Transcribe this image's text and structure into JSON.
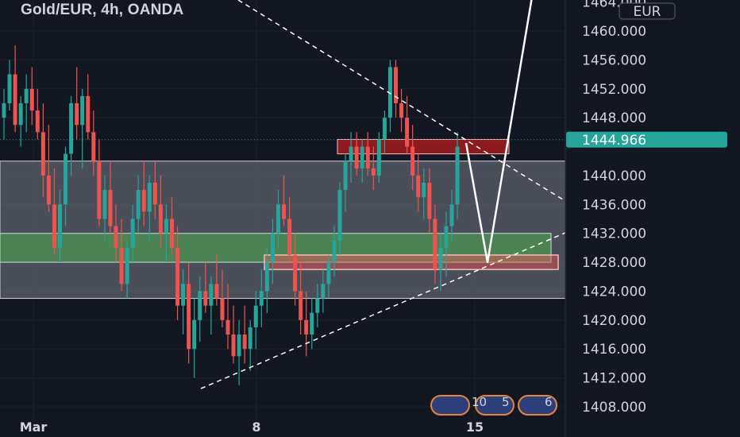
{
  "header": {
    "title": "Gold/EUR, 4h, OANDA"
  },
  "price_axis": {
    "currency": "EUR",
    "top_cut_label": "1464.000",
    "ticks": [
      "1460.000",
      "1456.000",
      "1452.000",
      "1448.000",
      "1440.000",
      "1436.000",
      "1432.000",
      "1428.000",
      "1424.000",
      "1420.000",
      "1416.000",
      "1412.000",
      "1408.000"
    ],
    "current_price": "1444.966"
  },
  "time_axis": {
    "ticks": [
      "Mar",
      "8",
      "15"
    ]
  },
  "events": {
    "counts": [
      "10",
      "5",
      "6"
    ]
  },
  "colors": {
    "background": "#131722",
    "bull": "#26a69a",
    "bear": "#ef5350",
    "price_tag": "#26a69a",
    "range_zone": "#787b86",
    "green_zone": "#4caf50",
    "red_zone": "#b71c1c"
  },
  "chart_data": {
    "type": "candlestick",
    "title": "Gold/EUR, 4h, OANDA",
    "ylim": [
      1405,
      1465
    ],
    "candles": [
      [
        1448,
        1452,
        1445,
        1450
      ],
      [
        1450,
        1456,
        1449,
        1454
      ],
      [
        1454,
        1458,
        1446,
        1447
      ],
      [
        1447,
        1451,
        1444,
        1450
      ],
      [
        1450,
        1454,
        1446,
        1452
      ],
      [
        1452,
        1455,
        1447,
        1449
      ],
      [
        1449,
        1452,
        1445,
        1446
      ],
      [
        1446,
        1450,
        1437,
        1440
      ],
      [
        1440,
        1447,
        1435,
        1436
      ],
      [
        1436,
        1441,
        1429,
        1430
      ],
      [
        1430,
        1438,
        1428,
        1436
      ],
      [
        1436,
        1444,
        1433,
        1443
      ],
      [
        1443,
        1451,
        1440,
        1450
      ],
      [
        1450,
        1455,
        1445,
        1447
      ],
      [
        1447,
        1452,
        1441,
        1451
      ],
      [
        1451,
        1454,
        1445,
        1446
      ],
      [
        1446,
        1449,
        1440,
        1442
      ],
      [
        1442,
        1445,
        1433,
        1434
      ],
      [
        1434,
        1440,
        1431,
        1438
      ],
      [
        1438,
        1442,
        1432,
        1433
      ],
      [
        1433,
        1436,
        1428,
        1430
      ],
      [
        1430,
        1434,
        1424,
        1425
      ],
      [
        1425,
        1431,
        1423,
        1430
      ],
      [
        1430,
        1436,
        1428,
        1434
      ],
      [
        1434,
        1440,
        1432,
        1438
      ],
      [
        1438,
        1442,
        1433,
        1435
      ],
      [
        1435,
        1440,
        1431,
        1439
      ],
      [
        1439,
        1442,
        1434,
        1436
      ],
      [
        1436,
        1440,
        1430,
        1432
      ],
      [
        1432,
        1436,
        1428,
        1434
      ],
      [
        1434,
        1437,
        1429,
        1430
      ],
      [
        1430,
        1433,
        1420,
        1422
      ],
      [
        1422,
        1427,
        1418,
        1425
      ],
      [
        1425,
        1428,
        1414,
        1416
      ],
      [
        1416,
        1423,
        1412,
        1420
      ],
      [
        1420,
        1426,
        1417,
        1424
      ],
      [
        1424,
        1428,
        1421,
        1422
      ],
      [
        1422,
        1426,
        1418,
        1425
      ],
      [
        1425,
        1429,
        1422,
        1423
      ],
      [
        1423,
        1427,
        1419,
        1420
      ],
      [
        1420,
        1425,
        1416,
        1418
      ],
      [
        1418,
        1422,
        1414,
        1415
      ],
      [
        1415,
        1420,
        1411,
        1418
      ],
      [
        1418,
        1422,
        1414,
        1416
      ],
      [
        1416,
        1420,
        1413,
        1419
      ],
      [
        1419,
        1424,
        1416,
        1422
      ],
      [
        1422,
        1427,
        1419,
        1424
      ],
      [
        1424,
        1430,
        1421,
        1428
      ],
      [
        1428,
        1434,
        1425,
        1432
      ],
      [
        1432,
        1438,
        1430,
        1436
      ],
      [
        1436,
        1440,
        1433,
        1434
      ],
      [
        1434,
        1437,
        1428,
        1429
      ],
      [
        1429,
        1432,
        1422,
        1424
      ],
      [
        1424,
        1428,
        1418,
        1420
      ],
      [
        1420,
        1424,
        1415,
        1418
      ],
      [
        1418,
        1423,
        1416,
        1421
      ],
      [
        1421,
        1425,
        1419,
        1423
      ],
      [
        1423,
        1427,
        1421,
        1425
      ],
      [
        1425,
        1429,
        1423,
        1428
      ],
      [
        1428,
        1433,
        1426,
        1431
      ],
      [
        1431,
        1439,
        1429,
        1438
      ],
      [
        1438,
        1443,
        1435,
        1442
      ],
      [
        1442,
        1446,
        1439,
        1444
      ],
      [
        1444,
        1446,
        1440,
        1441
      ],
      [
        1441,
        1445,
        1439,
        1444
      ],
      [
        1444,
        1446,
        1440,
        1441
      ],
      [
        1441,
        1444,
        1438,
        1440
      ],
      [
        1440,
        1446,
        1439,
        1445
      ],
      [
        1445,
        1449,
        1443,
        1448
      ],
      [
        1448,
        1456,
        1446,
        1455
      ],
      [
        1455,
        1456,
        1448,
        1450
      ],
      [
        1450,
        1452,
        1446,
        1448
      ],
      [
        1448,
        1451,
        1443,
        1444
      ],
      [
        1444,
        1447,
        1438,
        1440
      ],
      [
        1440,
        1443,
        1435,
        1437
      ],
      [
        1437,
        1441,
        1434,
        1439
      ],
      [
        1439,
        1441,
        1432,
        1434
      ],
      [
        1434,
        1436,
        1425,
        1427
      ],
      [
        1427,
        1432,
        1424,
        1430
      ],
      [
        1430,
        1435,
        1426,
        1433
      ],
      [
        1433,
        1438,
        1431,
        1436
      ],
      [
        1436,
        1446,
        1434,
        1444
      ]
    ],
    "zones": [
      {
        "type": "range",
        "from": 1423,
        "to": 1442
      },
      {
        "type": "support",
        "from": 1428,
        "to": 1432
      },
      {
        "type": "supply",
        "from": 1443,
        "to": 1445
      },
      {
        "type": "demand",
        "from": 1427,
        "to": 1429
      }
    ],
    "trendlines": [
      {
        "style": "dashed",
        "points": [
          [
            1,
            1472
          ],
          [
            31,
            1436
          ]
        ]
      },
      {
        "style": "dashed",
        "points": [
          [
            14,
            1410
          ],
          [
            31,
            1431
          ]
        ]
      }
    ],
    "projection": [
      [
        27.5,
        1444.5
      ],
      [
        29,
        1428
      ],
      [
        31,
        1466
      ]
    ],
    "current_price": 1444.966
  }
}
